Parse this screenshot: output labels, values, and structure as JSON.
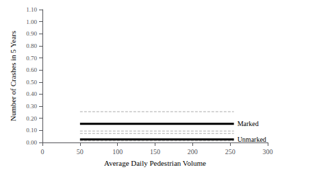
{
  "chart_data": {
    "type": "line",
    "xlabel": "Average Daily Pedestrian Volume",
    "ylabel": "Number of Crashes in 5 Years",
    "x": [
      50,
      255
    ],
    "series": [
      {
        "color": "#aaaaaa",
        "line_style": "dashed",
        "values": [
          0.255,
          0.255
        ]
      },
      {
        "name": "Marked",
        "color": "#000000",
        "line_style": "solid",
        "values": [
          0.155,
          0.155
        ]
      },
      {
        "color": "#aaaaaa",
        "line_style": "dashed",
        "values": [
          0.095,
          0.095
        ]
      },
      {
        "color": "#aaaaaa",
        "line_style": "dashed",
        "values": [
          0.075,
          0.075
        ]
      },
      {
        "name": "Unmarked",
        "color": "#000000",
        "line_style": "solid",
        "values": [
          0.025,
          0.025
        ]
      },
      {
        "color": "#aaaaaa",
        "line_style": "dashed",
        "values": [
          0.012,
          0.012
        ]
      }
    ],
    "xlim": [
      0,
      300
    ],
    "xticks": [
      0,
      50,
      100,
      150,
      200,
      250,
      300
    ],
    "ylim": [
      0.0,
      1.1
    ],
    "yticks": [
      {
        "value": 0.0,
        "label": "0.00"
      },
      {
        "value": 0.1,
        "label": "0.10"
      },
      {
        "value": 0.2,
        "label": "0.20"
      },
      {
        "value": 0.3,
        "label": "0.30"
      },
      {
        "value": 0.4,
        "label": "0.40"
      },
      {
        "value": 0.5,
        "label": "0.50"
      },
      {
        "value": 0.6,
        "label": "0.60"
      },
      {
        "value": 0.7,
        "label": "0.70"
      },
      {
        "value": 0.8,
        "label": "0.80"
      },
      {
        "value": 0.9,
        "label": "0.90"
      },
      {
        "value": 1.0,
        "label": "1.00"
      },
      {
        "value": 1.1,
        "label": "1.10"
      }
    ],
    "grid": false
  }
}
